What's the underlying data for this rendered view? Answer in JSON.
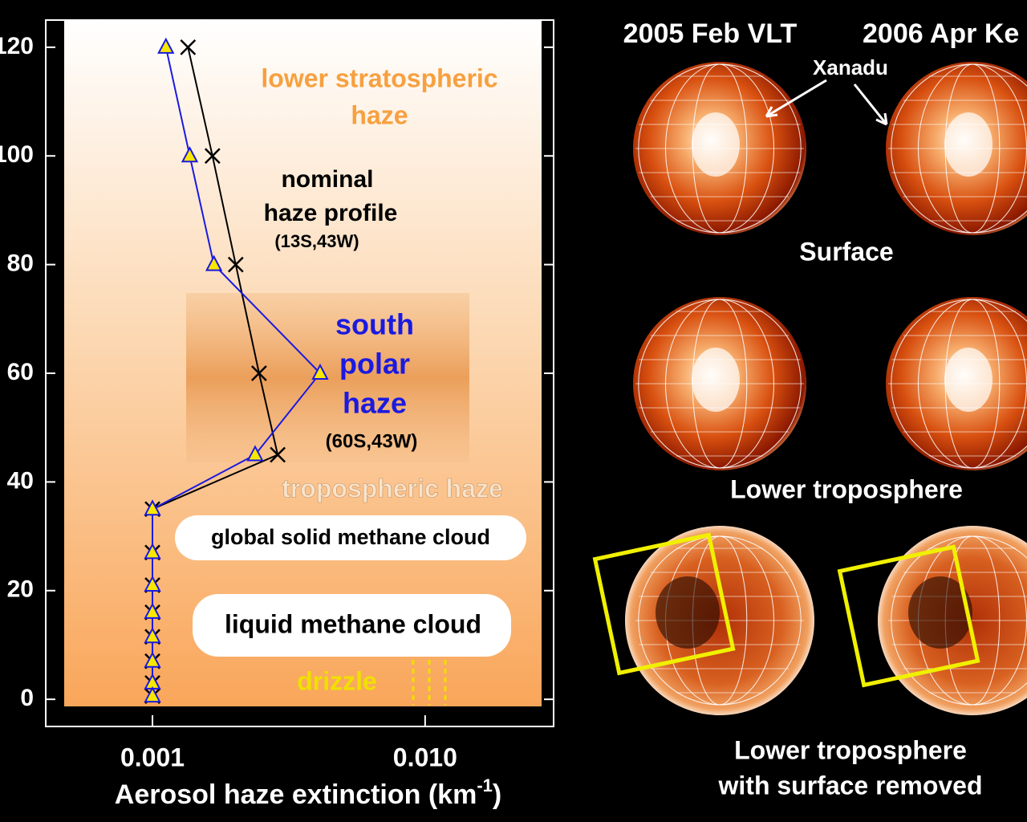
{
  "chart_data": {
    "type": "line",
    "xlabel": {
      "text": "Aerosol haze extinction (km",
      "superscript": "-1",
      "suffix": ")"
    },
    "xscale": "log",
    "xlim": [
      0.000406,
      0.0296
    ],
    "ylim": [
      -5,
      125
    ],
    "xticks": [
      0.001,
      {
        "value": 0.01,
        "label": "0.010"
      }
    ],
    "yticks": [
      0,
      20,
      40,
      60,
      80,
      100,
      120
    ],
    "series": [
      {
        "color": "#000000",
        "marker": "x",
        "x": [
          0.00135,
          0.00166,
          0.00202,
          0.00246,
          0.00288,
          0.001,
          0.001,
          0.001,
          0.001,
          0.001,
          0.001,
          0.001,
          0.001
        ],
        "y": [
          120,
          100,
          80,
          60,
          45,
          35,
          27,
          21,
          16,
          11.5,
          7,
          3,
          0.6
        ]
      },
      {
        "color": "#1a1ae0",
        "marker": "triangle",
        "x": [
          0.00112,
          0.00137,
          0.00168,
          0.00412,
          0.00238,
          0.001,
          0.001,
          0.001,
          0.001,
          0.001,
          0.001,
          0.001,
          0.001
        ],
        "y": [
          120,
          100,
          80,
          60,
          45,
          35,
          27,
          21,
          16,
          11.5,
          7,
          3,
          0.6
        ]
      }
    ],
    "annotations": {
      "stratospheric": [
        "lower stratospheric",
        "haze"
      ],
      "nominal": [
        "nominal",
        "haze profile"
      ],
      "nominal_loc": "(13S,43W)",
      "polar": [
        "south",
        "polar",
        "haze"
      ],
      "polar_loc": "(60S,43W)",
      "tropospheric": "tropospheric haze",
      "solid_cloud": "global solid methane cloud",
      "liquid_cloud": "liquid methane cloud",
      "drizzle": "drizzle"
    }
  },
  "figure_panels": {
    "columns": [
      "2005 Feb VLT",
      "2006 Apr Ke"
    ],
    "feature": "Xanadu",
    "rows": [
      "Surface",
      "Lower troposphere"
    ],
    "bottom": [
      "Lower troposphere",
      "with surface removed"
    ]
  }
}
